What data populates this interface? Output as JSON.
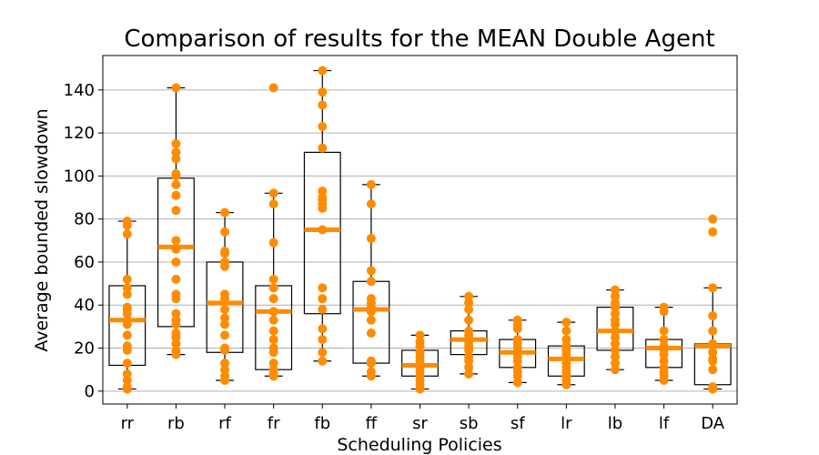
{
  "chart_data": {
    "type": "box",
    "title": "Comparison of results for the MEAN Double Agent",
    "xlabel": "Scheduling Policies",
    "ylabel": "Average bounded slowdown",
    "ylim": [
      -6,
      156
    ],
    "yticks": [
      0,
      20,
      40,
      60,
      80,
      100,
      120,
      140
    ],
    "grid": "horizontal",
    "colors": {
      "points": "#ff8c00",
      "median": "#ff8c00",
      "box": "#000000",
      "grid": "#b0b0b0"
    },
    "categories": [
      "rr",
      "rb",
      "rf",
      "fr",
      "fb",
      "ff",
      "sr",
      "sb",
      "sf",
      "lr",
      "lb",
      "lf",
      "DA"
    ],
    "boxes": [
      {
        "name": "rr",
        "whisker_low": 1,
        "q1": 12,
        "median": 33,
        "q3": 49,
        "whisker_high": 79,
        "fliers": []
      },
      {
        "name": "rb",
        "whisker_low": 17,
        "q1": 30,
        "median": 67,
        "q3": 99,
        "whisker_high": 141,
        "fliers": []
      },
      {
        "name": "rf",
        "whisker_low": 5,
        "q1": 18,
        "median": 41,
        "q3": 60,
        "whisker_high": 83,
        "fliers": []
      },
      {
        "name": "fr",
        "whisker_low": 7,
        "q1": 10,
        "median": 37,
        "q3": 49,
        "whisker_high": 92,
        "fliers": [
          141
        ]
      },
      {
        "name": "fb",
        "whisker_low": 14,
        "q1": 36,
        "median": 75,
        "q3": 111,
        "whisker_high": 149,
        "fliers": []
      },
      {
        "name": "ff",
        "whisker_low": 7,
        "q1": 13,
        "median": 38,
        "q3": 51,
        "whisker_high": 96,
        "fliers": []
      },
      {
        "name": "sr",
        "whisker_low": 1,
        "q1": 7,
        "median": 12,
        "q3": 19,
        "whisker_high": 26,
        "fliers": []
      },
      {
        "name": "sb",
        "whisker_low": 8,
        "q1": 17,
        "median": 24,
        "q3": 28,
        "whisker_high": 44,
        "fliers": []
      },
      {
        "name": "sf",
        "whisker_low": 4,
        "q1": 11,
        "median": 18,
        "q3": 24,
        "whisker_high": 33,
        "fliers": []
      },
      {
        "name": "lr",
        "whisker_low": 3,
        "q1": 7,
        "median": 15,
        "q3": 21,
        "whisker_high": 32,
        "fliers": []
      },
      {
        "name": "lb",
        "whisker_low": 10,
        "q1": 19,
        "median": 28,
        "q3": 39,
        "whisker_high": 47,
        "fliers": []
      },
      {
        "name": "lf",
        "whisker_low": 5,
        "q1": 11,
        "median": 20,
        "q3": 24,
        "whisker_high": 39,
        "fliers": []
      },
      {
        "name": "DA",
        "whisker_low": 1,
        "q1": 3,
        "median": 21,
        "q3": 22,
        "whisker_high": 48,
        "fliers": [
          74,
          80
        ]
      }
    ],
    "points": [
      [
        1,
        2,
        5,
        8,
        13,
        19,
        21,
        26,
        31,
        33,
        36,
        38,
        39,
        45,
        48,
        52,
        73,
        77,
        79
      ],
      [
        17,
        19,
        22,
        25,
        27,
        31,
        33,
        36,
        43,
        45,
        52,
        60,
        66,
        70,
        84,
        91,
        96,
        100,
        101,
        108,
        111,
        115,
        141
      ],
      [
        5,
        7,
        10,
        13,
        19,
        20,
        26,
        31,
        34,
        38,
        43,
        45,
        58,
        60,
        64,
        65,
        74,
        83
      ],
      [
        7,
        8,
        10,
        13,
        18,
        20,
        24,
        28,
        33,
        37,
        43,
        48,
        52,
        69,
        87,
        92,
        141
      ],
      [
        14,
        18,
        24,
        29,
        38,
        43,
        48,
        75,
        85,
        87,
        89,
        90,
        93,
        113,
        123,
        133,
        139,
        149
      ],
      [
        7,
        9,
        13,
        14,
        27,
        33,
        37,
        39,
        41,
        43,
        51,
        56,
        71,
        87,
        96
      ],
      [
        1,
        3,
        5,
        7,
        9,
        11,
        12,
        14,
        16,
        18,
        21,
        23,
        26
      ],
      [
        8,
        11,
        14,
        16,
        19,
        21,
        23,
        24,
        26,
        28,
        33,
        38,
        41,
        44
      ],
      [
        4,
        7,
        9,
        11,
        14,
        16,
        18,
        20,
        22,
        24,
        29,
        31,
        33
      ],
      [
        3,
        5,
        7,
        9,
        11,
        13,
        15,
        17,
        19,
        21,
        24,
        28,
        32
      ],
      [
        10,
        13,
        16,
        19,
        22,
        25,
        28,
        31,
        33,
        36,
        39,
        41,
        44,
        47
      ],
      [
        5,
        7,
        9,
        11,
        14,
        17,
        19,
        21,
        24,
        28,
        37,
        39
      ],
      [
        1,
        2,
        10,
        14,
        15,
        18,
        21,
        22,
        28,
        35,
        48,
        74,
        80
      ]
    ]
  }
}
